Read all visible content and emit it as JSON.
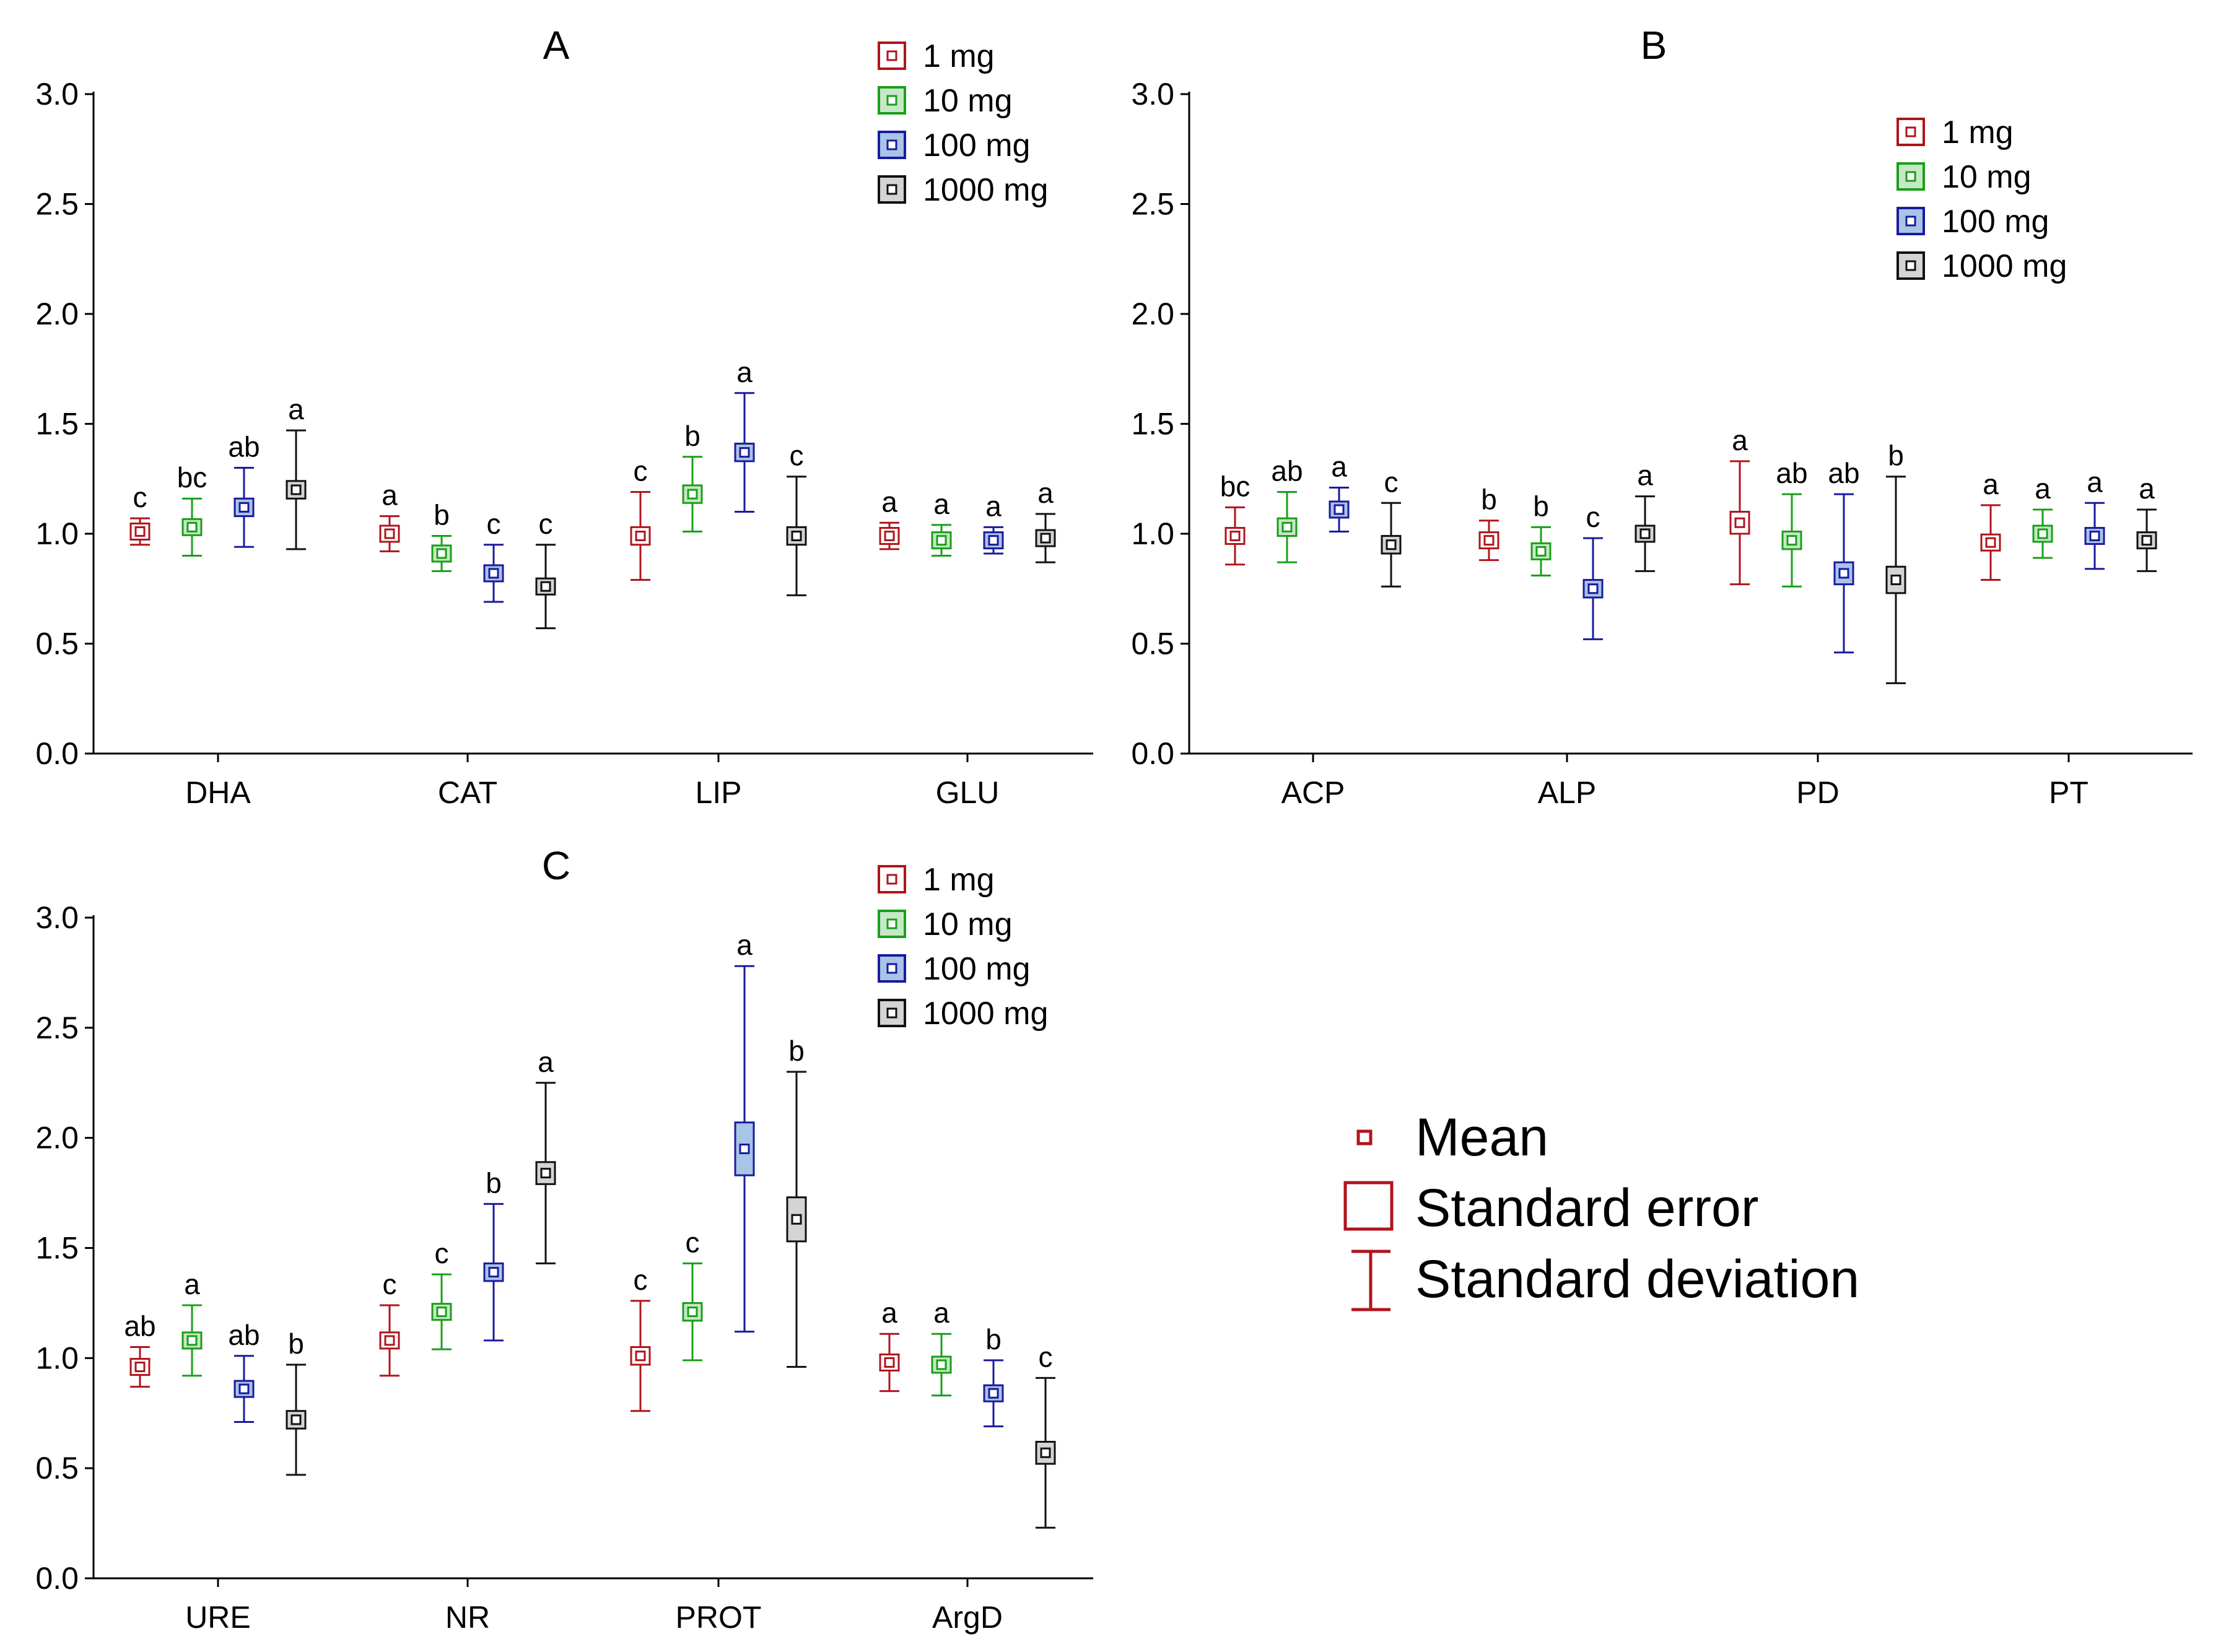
{
  "chart_data": [
    {
      "type": "box",
      "panel": "A",
      "title": "A",
      "categories": [
        "DHA",
        "CAT",
        "LIP",
        "GLU"
      ],
      "ylim": [
        0,
        3
      ],
      "yticks": [
        "0.0",
        "0.5",
        "1.0",
        "1.5",
        "2.0",
        "2.5",
        "3.0"
      ],
      "legend": [
        "1 mg",
        "10 mg",
        "100 mg",
        "1000 mg"
      ],
      "series": [
        {
          "name": "1 mg",
          "mean": [
            1.01,
            1.0,
            0.99,
            0.99
          ],
          "se": [
            0.03,
            0.03,
            0.04,
            0.03
          ],
          "sd": [
            0.06,
            0.08,
            0.2,
            0.06
          ],
          "letters": [
            "c",
            "a",
            "c",
            "a"
          ]
        },
        {
          "name": "10 mg",
          "mean": [
            1.03,
            0.91,
            1.18,
            0.97
          ],
          "se": [
            0.03,
            0.03,
            0.04,
            0.03
          ],
          "sd": [
            0.13,
            0.08,
            0.17,
            0.07
          ],
          "letters": [
            "bc",
            "b",
            "b",
            "a"
          ]
        },
        {
          "name": "100 mg",
          "mean": [
            1.12,
            0.82,
            1.37,
            0.97
          ],
          "se": [
            0.04,
            0.03,
            0.04,
            0.03
          ],
          "sd": [
            0.18,
            0.13,
            0.27,
            0.06
          ],
          "letters": [
            "ab",
            "c",
            "a",
            "a"
          ]
        },
        {
          "name": "1000 mg",
          "mean": [
            1.2,
            0.76,
            0.99,
            0.98
          ],
          "se": [
            0.04,
            0.03,
            0.04,
            0.03
          ],
          "sd": [
            0.27,
            0.19,
            0.27,
            0.11
          ],
          "letters": [
            "a",
            "c",
            "c",
            "a"
          ]
        }
      ]
    },
    {
      "type": "box",
      "panel": "B",
      "title": "B",
      "categories": [
        "ACP",
        "ALP",
        "PD",
        "PT"
      ],
      "ylim": [
        0,
        3
      ],
      "yticks": [
        "0.0",
        "0.5",
        "1.0",
        "1.5",
        "2.0",
        "2.5",
        "3.0"
      ],
      "legend": [
        "1 mg",
        "10 mg",
        "100 mg",
        "1000 mg"
      ],
      "series": [
        {
          "name": "1 mg",
          "mean": [
            0.99,
            0.97,
            1.05,
            0.96
          ],
          "se": [
            0.03,
            0.03,
            0.05,
            0.03
          ],
          "sd": [
            0.13,
            0.09,
            0.28,
            0.17
          ],
          "letters": [
            "bc",
            "b",
            "a",
            "a"
          ]
        },
        {
          "name": "10 mg",
          "mean": [
            1.03,
            0.92,
            0.97,
            1.0
          ],
          "se": [
            0.04,
            0.03,
            0.04,
            0.03
          ],
          "sd": [
            0.16,
            0.11,
            0.21,
            0.11
          ],
          "letters": [
            "ab",
            "b",
            "ab",
            "a"
          ]
        },
        {
          "name": "100 mg",
          "mean": [
            1.11,
            0.75,
            0.82,
            0.99
          ],
          "se": [
            0.03,
            0.04,
            0.05,
            0.03
          ],
          "sd": [
            0.1,
            0.23,
            0.36,
            0.15
          ],
          "letters": [
            "a",
            "c",
            "ab",
            "a"
          ]
        },
        {
          "name": "1000 mg",
          "mean": [
            0.95,
            1.0,
            0.79,
            0.97
          ],
          "se": [
            0.04,
            0.03,
            0.06,
            0.03
          ],
          "sd": [
            0.19,
            0.17,
            0.47,
            0.14
          ],
          "letters": [
            "c",
            "a",
            "b",
            "a"
          ]
        }
      ]
    },
    {
      "type": "box",
      "panel": "C",
      "title": "C",
      "categories": [
        "URE",
        "NR",
        "PROT",
        "ArgD"
      ],
      "ylim": [
        0,
        3
      ],
      "yticks": [
        "0.0",
        "0.5",
        "1.0",
        "1.5",
        "2.0",
        "2.5",
        "3.0"
      ],
      "legend": [
        "1 mg",
        "10 mg",
        "100 mg",
        "1000 mg"
      ],
      "series": [
        {
          "name": "1 mg",
          "mean": [
            0.96,
            1.08,
            1.01,
            0.98
          ],
          "se": [
            0.03,
            0.03,
            0.04,
            0.03
          ],
          "sd": [
            0.09,
            0.16,
            0.25,
            0.13
          ],
          "letters": [
            "ab",
            "c",
            "c",
            "a"
          ]
        },
        {
          "name": "10 mg",
          "mean": [
            1.08,
            1.21,
            1.21,
            0.97
          ],
          "se": [
            0.03,
            0.03,
            0.04,
            0.03
          ],
          "sd": [
            0.16,
            0.17,
            0.22,
            0.14
          ],
          "letters": [
            "a",
            "c",
            "c",
            "a"
          ]
        },
        {
          "name": "100 mg",
          "mean": [
            0.86,
            1.39,
            1.95,
            0.84
          ],
          "se": [
            0.03,
            0.04,
            0.12,
            0.03
          ],
          "sd": [
            0.15,
            0.31,
            0.83,
            0.15
          ],
          "letters": [
            "ab",
            "b",
            "a",
            "b"
          ]
        },
        {
          "name": "1000 mg",
          "mean": [
            0.72,
            1.84,
            1.63,
            0.57
          ],
          "se": [
            0.04,
            0.05,
            0.1,
            0.05
          ],
          "sd": [
            0.25,
            0.41,
            0.67,
            0.34
          ],
          "letters": [
            "b",
            "a",
            "b",
            "c"
          ]
        }
      ]
    }
  ],
  "colors": {
    "1 mg": {
      "stroke": "#b0141c",
      "fill": "#ffffff"
    },
    "10 mg": {
      "stroke": "#18a018",
      "fill": "#c8e6c8"
    },
    "100 mg": {
      "stroke": "#1a1a9e",
      "fill": "#a8c4e6"
    },
    "1000 mg": {
      "stroke": "#111111",
      "fill": "#d4d4d4"
    }
  },
  "key": {
    "mean": "Mean",
    "standard_error": "Standard error",
    "standard_deviation": "Standard deviation",
    "color": "#b0141c"
  }
}
